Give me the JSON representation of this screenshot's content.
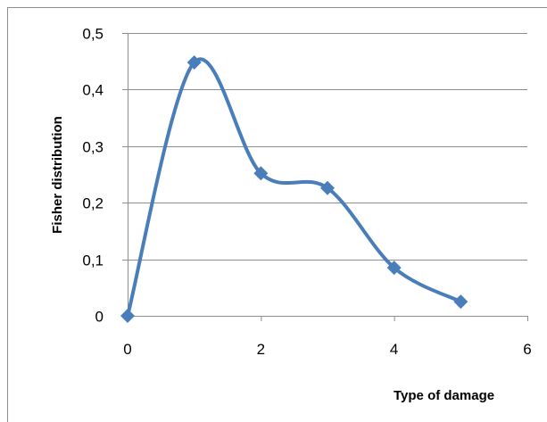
{
  "chart_data": {
    "type": "scatter",
    "title": "",
    "xlabel": "Type of damage",
    "ylabel": "Fisher distribution",
    "xlim": [
      0,
      6
    ],
    "ylim": [
      0,
      0.5
    ],
    "x_ticks": [
      0,
      2,
      4,
      6
    ],
    "x_tick_labels": [
      "0",
      "2",
      "4",
      "6"
    ],
    "y_ticks": [
      0,
      0.1,
      0.2,
      0.3,
      0.4,
      0.5
    ],
    "y_tick_labels": [
      "0",
      "0,1",
      "0,2",
      "0,3",
      "0,4",
      "0,5"
    ],
    "grid": "horizontal",
    "legend": "none",
    "smooth_line": true,
    "marker": "diamond",
    "series": [
      {
        "x": [
          0,
          1,
          2,
          3,
          4,
          5
        ],
        "y": [
          0,
          0.448,
          0.252,
          0.226,
          0.085,
          0.025
        ],
        "color": "#4a7ebb"
      }
    ]
  }
}
